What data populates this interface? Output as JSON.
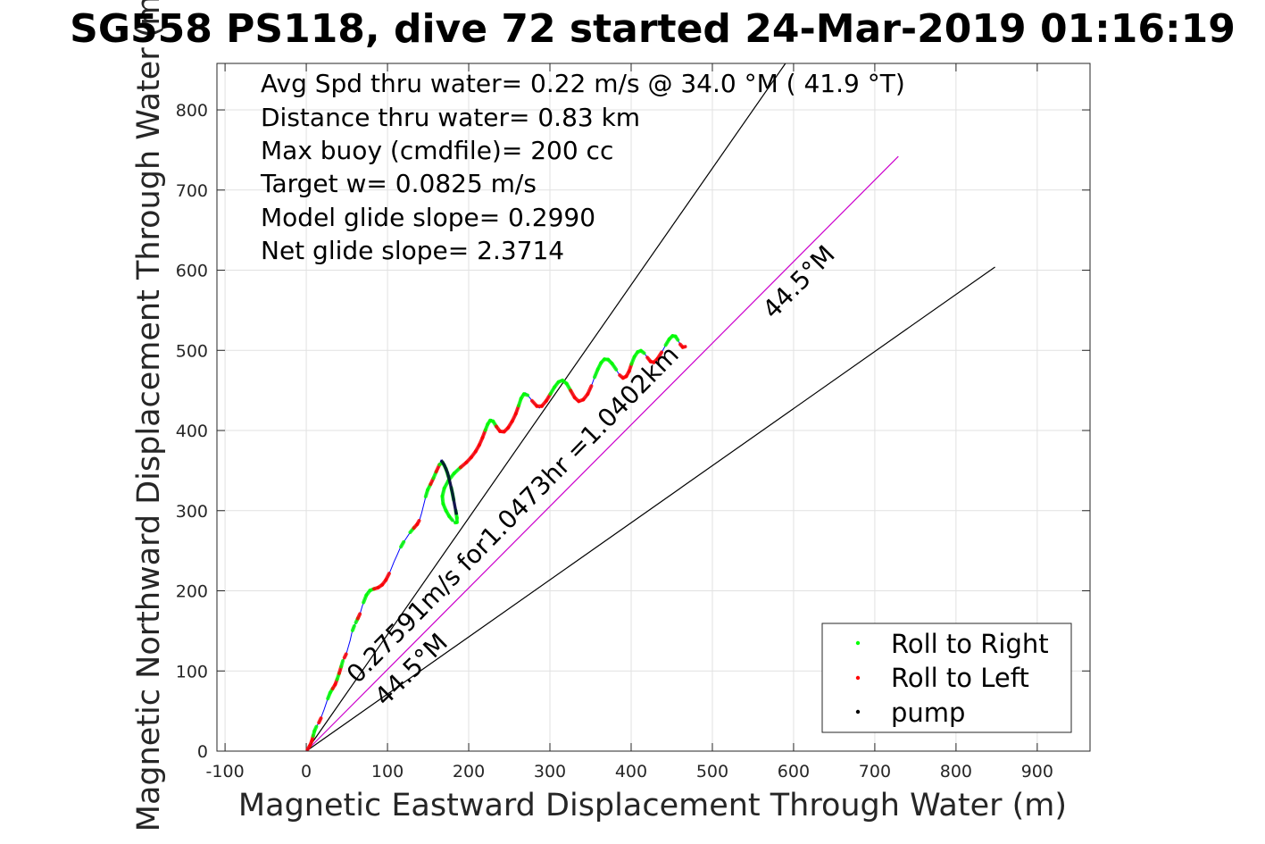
{
  "chart_data": {
    "type": "line",
    "title": "SG558 PS118, dive 72 started 24-Mar-2019 01:16:19",
    "xlabel": "Magnetic Eastward Displacement Through Water (m)",
    "ylabel": "Magnetic Northward Displacement Through Water (m)",
    "xlim": [
      -110,
      965
    ],
    "ylim": [
      0,
      858
    ],
    "xticks": [
      -100,
      0,
      100,
      200,
      300,
      400,
      500,
      600,
      700,
      800,
      900
    ],
    "yticks": [
      0,
      100,
      200,
      300,
      400,
      500,
      600,
      700,
      800
    ],
    "grid": true,
    "summary_lines": [
      "Avg Spd thru water=  0.22 m/s @  34.0 °M ( 41.9 °T)",
      "Distance thru water=  0.83 km",
      "Max buoy (cmdfile)= 200 cc",
      "Target w= 0.0825 m/s",
      "Model glide slope= 0.2990",
      "Net glide slope= 2.3714"
    ],
    "reference_lines": [
      {
        "name": "heading-line",
        "x": [
          0,
          848
        ],
        "y": [
          0,
          604
        ],
        "color": "#000000",
        "label": "44.5°M"
      },
      {
        "name": "speed-line",
        "x": [
          0,
          729
        ],
        "y": [
          0,
          742
        ],
        "color": "#cc00cc",
        "label": "0.27591m/s for1.0473hr =1.0402km"
      },
      {
        "name": "steep-line",
        "x": [
          0,
          590
        ],
        "y": [
          0,
          858
        ],
        "color": "#000000",
        "label": ""
      }
    ],
    "line_labels": [
      {
        "text": "44.5°M",
        "x": 97,
        "y": 55,
        "angle": 44.5
      },
      {
        "text": "0.27591m/s for1.0473hr =1.0402km",
        "x": 63,
        "y": 83,
        "angle": 45.5
      },
      {
        "text": "44.5°M",
        "x": 575,
        "y": 538,
        "angle": 45.5
      }
    ],
    "track": {
      "color": "#0000ff",
      "x": [
        0,
        3,
        6,
        8,
        9,
        11,
        14,
        17,
        19,
        22,
        25,
        28,
        31,
        34,
        37,
        39,
        42,
        44,
        46,
        48,
        50,
        52,
        54,
        56,
        58,
        60,
        62,
        65,
        67,
        69,
        72,
        76,
        81,
        86,
        91,
        96,
        100,
        104,
        108,
        112,
        115,
        118,
        122,
        126,
        130,
        135,
        138,
        140,
        142,
        144,
        146,
        148,
        151,
        155,
        158,
        162,
        166,
        170,
        174,
        177,
        180,
        183,
        185,
        186,
        185,
        182,
        178,
        174,
        170,
        167,
        168,
        172,
        178,
        186,
        194,
        200,
        206,
        211,
        215,
        219,
        222,
        225,
        228,
        232,
        236,
        241,
        246,
        251,
        256,
        260,
        263,
        266,
        270,
        275,
        281,
        287,
        293,
        298,
        303,
        308,
        313,
        318,
        323,
        328,
        333,
        338,
        344,
        349,
        353,
        357,
        361,
        365,
        369,
        374,
        379,
        384,
        388,
        392,
        396,
        399,
        402,
        406,
        410,
        414,
        418,
        422,
        426,
        430,
        435,
        440,
        445,
        449,
        453,
        456,
        459,
        462,
        465,
        468
      ],
      "y": [
        0,
        4,
        10,
        16,
        22,
        28,
        33,
        38,
        44,
        52,
        61,
        70,
        76,
        80,
        86,
        93,
        101,
        110,
        115,
        118,
        124,
        131,
        138,
        147,
        154,
        158,
        163,
        168,
        174,
        181,
        190,
        199,
        202,
        203,
        205,
        210,
        217,
        226,
        236,
        245,
        252,
        258,
        264,
        270,
        276,
        281,
        285,
        290,
        297,
        305,
        313,
        322,
        330,
        336,
        345,
        352,
        363,
        357,
        347,
        335,
        322,
        305,
        295,
        287,
        284,
        286,
        290,
        296,
        304,
        313,
        323,
        333,
        342,
        351,
        357,
        363,
        370,
        378,
        386,
        396,
        405,
        411,
        414,
        409,
        401,
        397,
        400,
        407,
        416,
        426,
        436,
        444,
        447,
        441,
        433,
        428,
        433,
        441,
        450,
        458,
        463,
        462,
        455,
        445,
        437,
        436,
        441,
        450,
        461,
        472,
        481,
        488,
        490,
        487,
        480,
        472,
        466,
        465,
        470,
        478,
        488,
        496,
        500,
        499,
        494,
        488,
        484,
        486,
        493,
        502,
        511,
        517,
        519,
        516,
        510,
        505,
        503,
        506
      ],
      "note": ""
    },
    "legend": {
      "position": "bottom-right",
      "entries": [
        {
          "label": "Roll to Right",
          "color": "#00ff00"
        },
        {
          "label": "Roll to Left",
          "color": "#ff0000"
        },
        {
          "label": "pump",
          "color": "#000000"
        }
      ]
    }
  }
}
